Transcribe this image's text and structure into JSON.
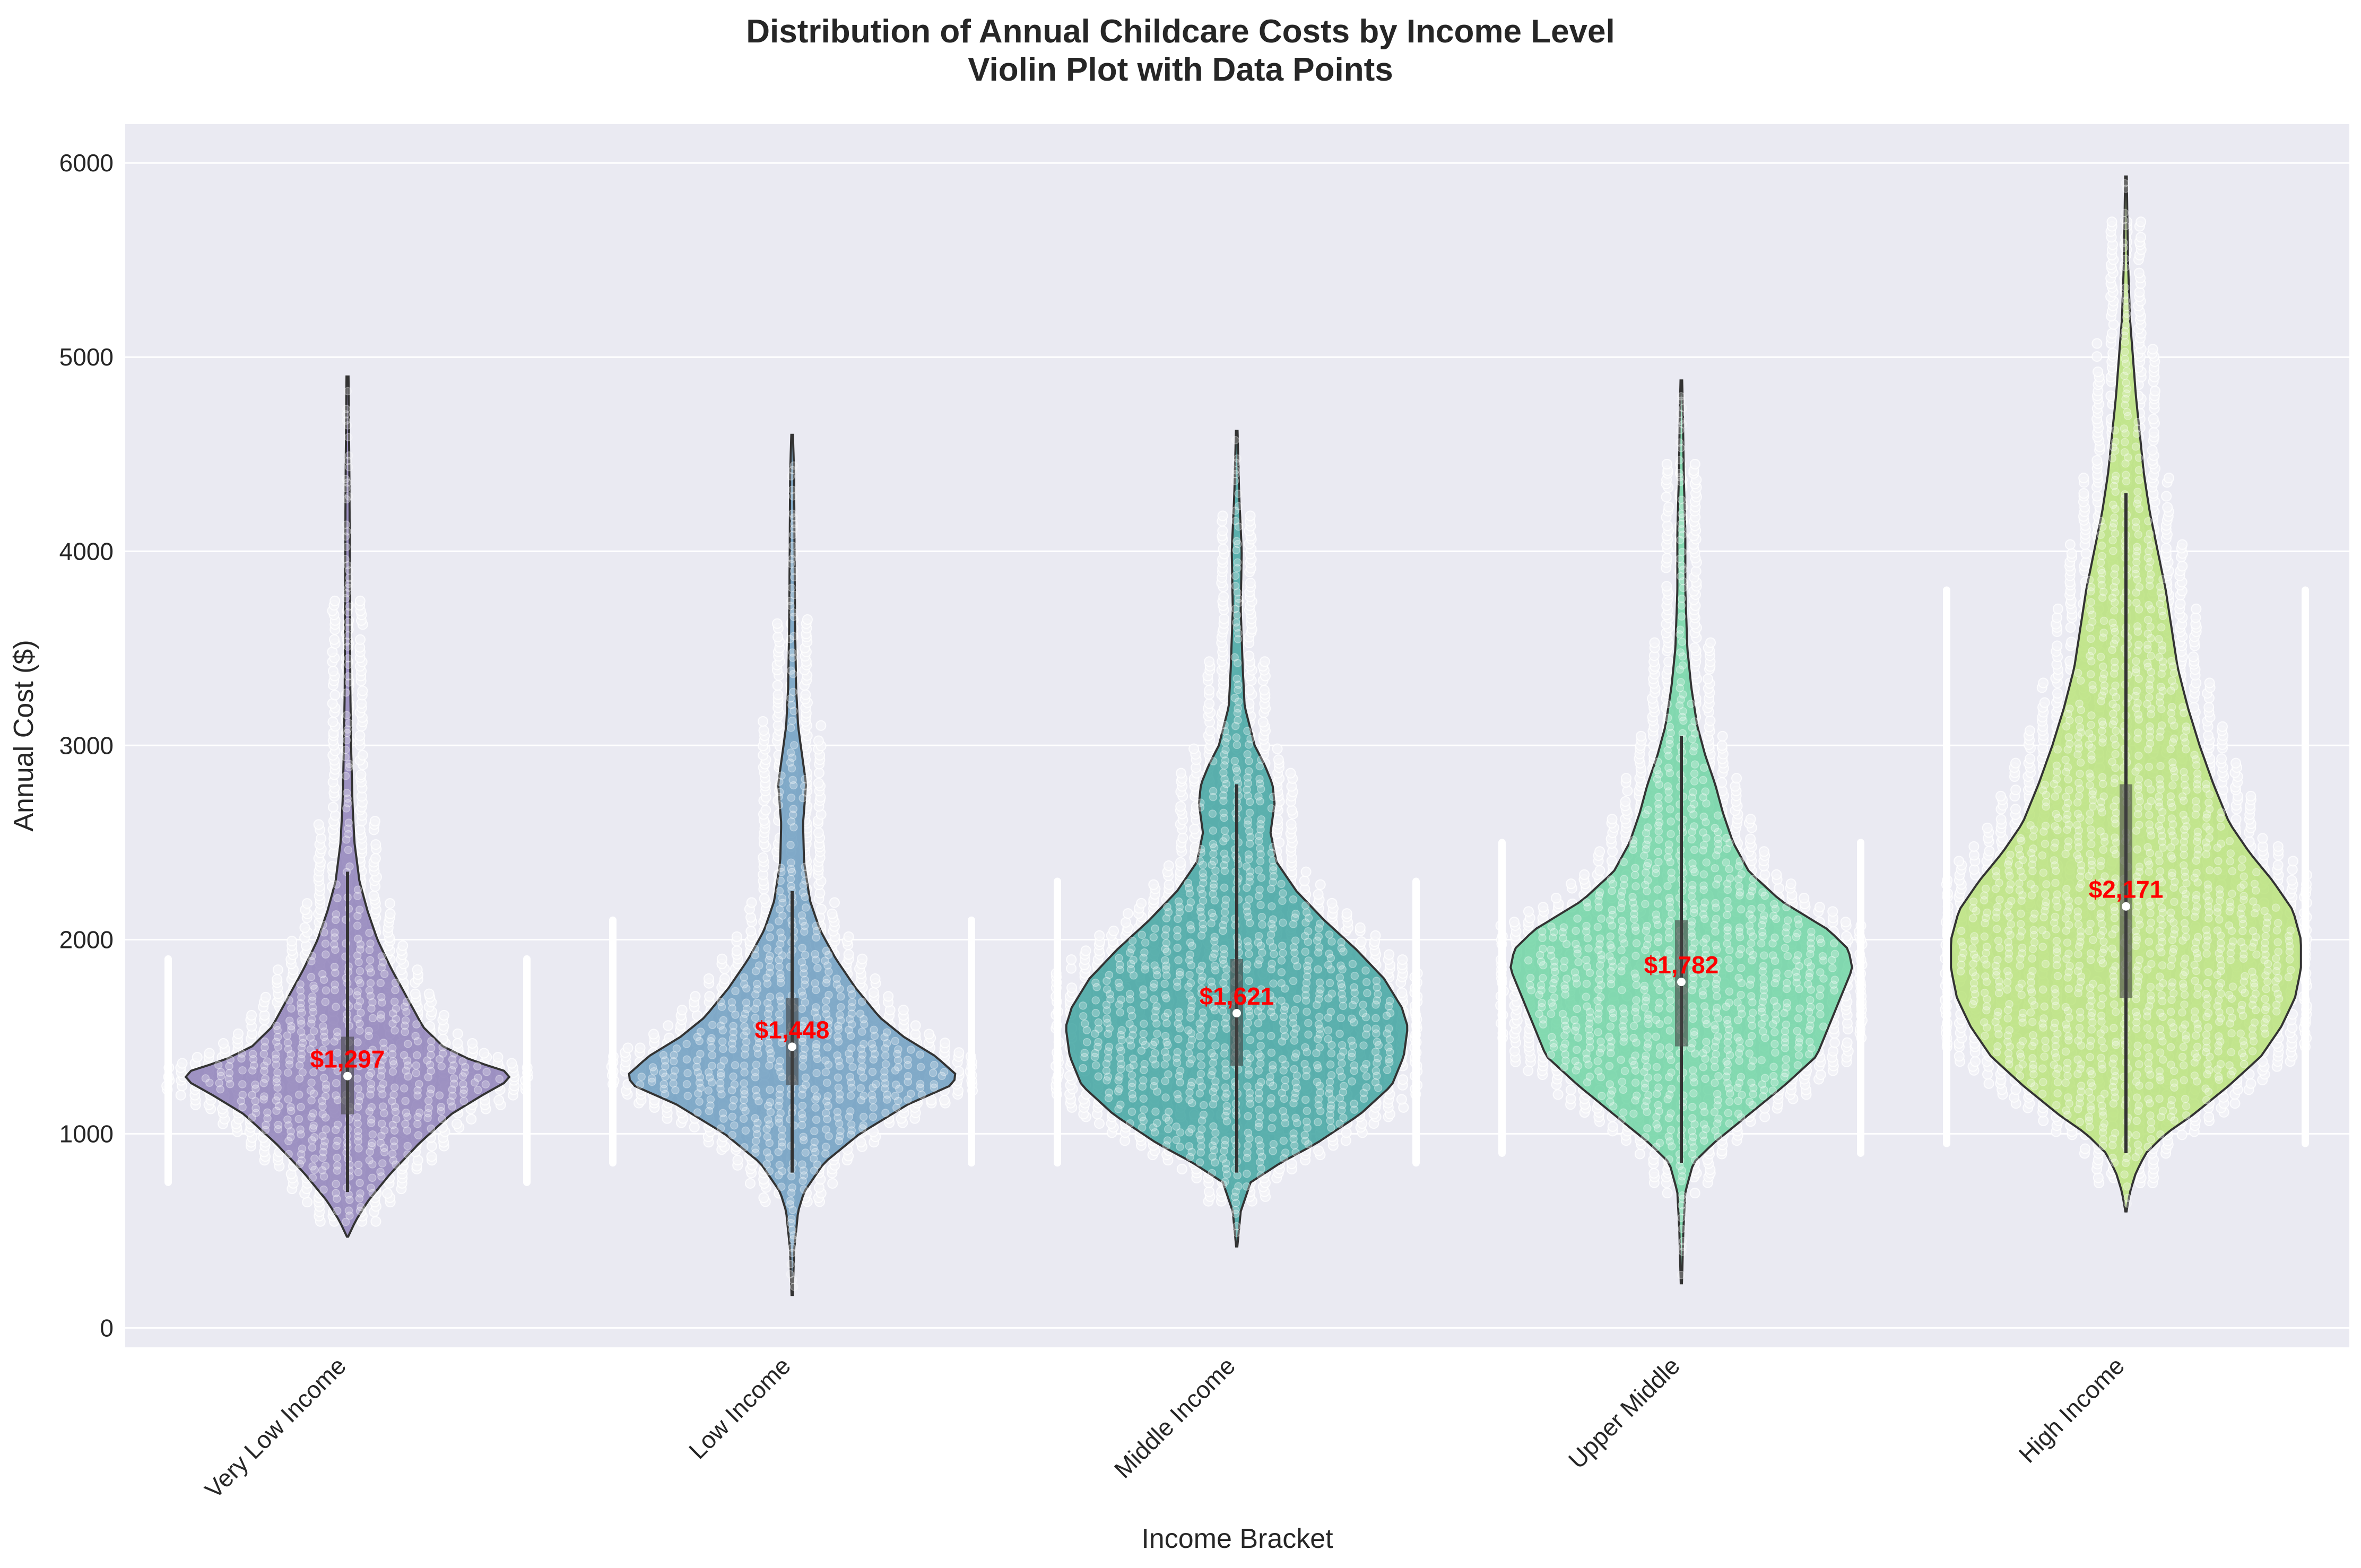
{
  "chart_data": {
    "type": "violin",
    "title": "Distribution of Annual Childcare Costs by Income Level",
    "subtitle": "Violin Plot with Data Points",
    "xlabel": "Income Bracket",
    "ylabel": "Annual Cost ($)",
    "ylim": [
      -100,
      6200
    ],
    "yticks": [
      0,
      1000,
      2000,
      3000,
      4000,
      5000,
      6000
    ],
    "grid": true,
    "categories": [
      "Very Low Income",
      "Low Income",
      "Middle Income",
      "Upper Middle",
      "High Income"
    ],
    "colors": [
      "#8e80b8",
      "#6c9cbf",
      "#3fa3a0",
      "#6fd3a3",
      "#b9e27a"
    ],
    "medians": [
      1297,
      1448,
      1621,
      1782,
      2171
    ],
    "median_labels": [
      "$1,297",
      "$1,448",
      "$1,621",
      "$1,782",
      "$2,171"
    ],
    "quartiles": [
      [
        1100,
        1500
      ],
      [
        1250,
        1700
      ],
      [
        1350,
        1900
      ],
      [
        1450,
        2100
      ],
      [
        1700,
        2800
      ]
    ],
    "whisker_range": [
      [
        700,
        2350
      ],
      [
        800,
        2250
      ],
      [
        800,
        2800
      ],
      [
        850,
        3050
      ],
      [
        900,
        4300
      ]
    ],
    "violin_range": [
      [
        470,
        4900
      ],
      [
        170,
        4600
      ],
      [
        420,
        4620
      ],
      [
        230,
        4880
      ],
      [
        600,
        5930
      ]
    ],
    "violin_shapes": [
      [
        [
          470,
          0.003
        ],
        [
          550,
          0.04
        ],
        [
          650,
          0.1
        ],
        [
          800,
          0.22
        ],
        [
          950,
          0.36
        ],
        [
          1100,
          0.52
        ],
        [
          1200,
          0.68
        ],
        [
          1280,
          0.82
        ],
        [
          1320,
          0.8
        ],
        [
          1380,
          0.62
        ],
        [
          1450,
          0.48
        ],
        [
          1550,
          0.38
        ],
        [
          1700,
          0.3
        ],
        [
          1850,
          0.22
        ],
        [
          2000,
          0.15
        ],
        [
          2150,
          0.1
        ],
        [
          2300,
          0.06
        ],
        [
          2500,
          0.035
        ],
        [
          2700,
          0.025
        ],
        [
          3000,
          0.018
        ],
        [
          3300,
          0.014
        ],
        [
          3800,
          0.012
        ],
        [
          4300,
          0.01
        ],
        [
          4900,
          0.005
        ]
      ],
      [
        [
          170,
          0.003
        ],
        [
          400,
          0.01
        ],
        [
          600,
          0.03
        ],
        [
          700,
          0.06
        ],
        [
          850,
          0.16
        ],
        [
          1000,
          0.34
        ],
        [
          1150,
          0.58
        ],
        [
          1250,
          0.8
        ],
        [
          1300,
          0.83
        ],
        [
          1400,
          0.72
        ],
        [
          1500,
          0.56
        ],
        [
          1600,
          0.44
        ],
        [
          1750,
          0.32
        ],
        [
          1900,
          0.22
        ],
        [
          2050,
          0.14
        ],
        [
          2200,
          0.09
        ],
        [
          2400,
          0.06
        ],
        [
          2600,
          0.055
        ],
        [
          2800,
          0.07
        ],
        [
          2950,
          0.05
        ],
        [
          3100,
          0.03
        ],
        [
          3300,
          0.02
        ],
        [
          3600,
          0.015
        ],
        [
          4000,
          0.012
        ],
        [
          4400,
          0.01
        ],
        [
          4600,
          0.004
        ]
      ],
      [
        [
          420,
          0.003
        ],
        [
          600,
          0.02
        ],
        [
          750,
          0.07
        ],
        [
          850,
          0.22
        ],
        [
          950,
          0.4
        ],
        [
          1100,
          0.62
        ],
        [
          1250,
          0.78
        ],
        [
          1400,
          0.84
        ],
        [
          1550,
          0.86
        ],
        [
          1650,
          0.83
        ],
        [
          1800,
          0.74
        ],
        [
          1950,
          0.6
        ],
        [
          2100,
          0.44
        ],
        [
          2250,
          0.3
        ],
        [
          2400,
          0.2
        ],
        [
          2550,
          0.17
        ],
        [
          2700,
          0.19
        ],
        [
          2800,
          0.18
        ],
        [
          2900,
          0.14
        ],
        [
          3000,
          0.09
        ],
        [
          3200,
          0.04
        ],
        [
          3400,
          0.03
        ],
        [
          3700,
          0.02
        ],
        [
          4000,
          0.025
        ],
        [
          4300,
          0.012
        ],
        [
          4620,
          0.004
        ]
      ],
      [
        [
          230,
          0.003
        ],
        [
          500,
          0.01
        ],
        [
          700,
          0.02
        ],
        [
          850,
          0.06
        ],
        [
          950,
          0.16
        ],
        [
          1100,
          0.34
        ],
        [
          1250,
          0.52
        ],
        [
          1400,
          0.68
        ],
        [
          1550,
          0.74
        ],
        [
          1700,
          0.8
        ],
        [
          1850,
          0.86
        ],
        [
          1950,
          0.84
        ],
        [
          2050,
          0.74
        ],
        [
          2200,
          0.5
        ],
        [
          2350,
          0.34
        ],
        [
          2500,
          0.26
        ],
        [
          2650,
          0.21
        ],
        [
          2800,
          0.17
        ],
        [
          2950,
          0.12
        ],
        [
          3100,
          0.08
        ],
        [
          3300,
          0.05
        ],
        [
          3500,
          0.03
        ],
        [
          3800,
          0.02
        ],
        [
          4100,
          0.02
        ],
        [
          4400,
          0.012
        ],
        [
          4700,
          0.008
        ],
        [
          4880,
          0.004
        ]
      ],
      [
        [
          600,
          0.003
        ],
        [
          700,
          0.02
        ],
        [
          800,
          0.05
        ],
        [
          900,
          0.1
        ],
        [
          1000,
          0.2
        ],
        [
          1100,
          0.34
        ],
        [
          1250,
          0.52
        ],
        [
          1400,
          0.68
        ],
        [
          1550,
          0.78
        ],
        [
          1700,
          0.85
        ],
        [
          1850,
          0.88
        ],
        [
          2000,
          0.88
        ],
        [
          2150,
          0.84
        ],
        [
          2300,
          0.74
        ],
        [
          2450,
          0.62
        ],
        [
          2600,
          0.52
        ],
        [
          2800,
          0.44
        ],
        [
          3000,
          0.37
        ],
        [
          3200,
          0.31
        ],
        [
          3400,
          0.26
        ],
        [
          3600,
          0.23
        ],
        [
          3800,
          0.2
        ],
        [
          4000,
          0.16
        ],
        [
          4200,
          0.12
        ],
        [
          4400,
          0.09
        ],
        [
          4600,
          0.07
        ],
        [
          4800,
          0.05
        ],
        [
          5000,
          0.035
        ],
        [
          5200,
          0.02
        ],
        [
          5500,
          0.01
        ],
        [
          5930,
          0.004
        ]
      ]
    ]
  }
}
